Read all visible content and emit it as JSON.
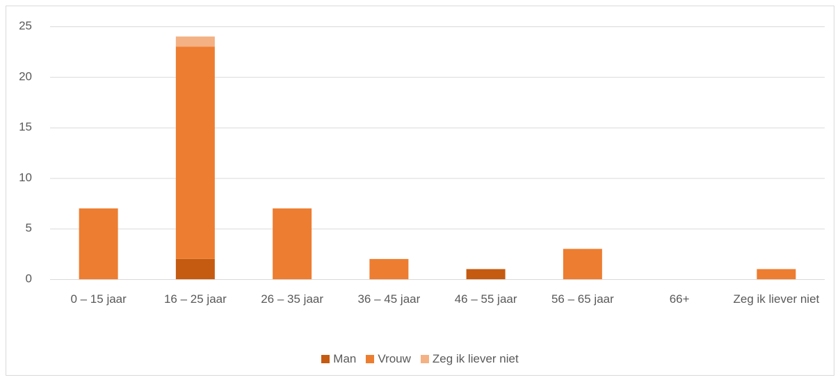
{
  "chart_data": {
    "type": "stacked_bar",
    "categories": [
      "0 – 15 jaar",
      "16 – 25 jaar",
      "26 – 35 jaar",
      "36 – 45 jaar",
      "46 – 55 jaar",
      "56 – 65 jaar",
      "66+",
      "Zeg ik liever niet"
    ],
    "series": [
      {
        "name": "Man",
        "color": "#c55a11",
        "values": [
          0,
          2,
          0,
          0,
          1,
          0,
          0,
          0
        ]
      },
      {
        "name": "Vrouw",
        "color": "#ed7d31",
        "values": [
          7,
          21,
          7,
          2,
          0,
          3,
          0,
          1
        ]
      },
      {
        "name": "Zeg ik liever niet",
        "color": "#f4b183",
        "values": [
          0,
          1,
          0,
          0,
          0,
          0,
          0,
          0
        ]
      }
    ],
    "ylim": [
      0,
      25
    ],
    "yticks": [
      0,
      5,
      10,
      15,
      20,
      25
    ],
    "grid": true,
    "legend": "bottom"
  }
}
